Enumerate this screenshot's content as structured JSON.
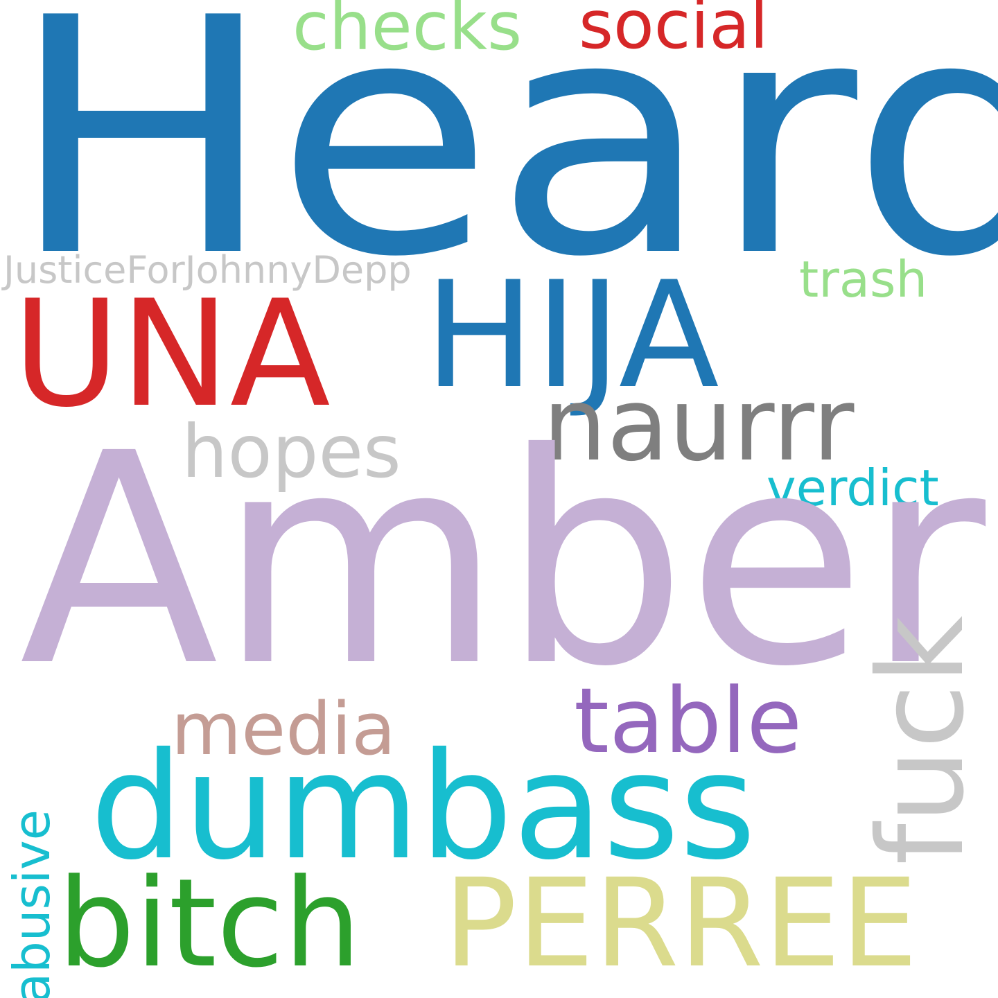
{
  "word_cloud": {
    "background": "#ffffff",
    "words": {
      "heard": {
        "text": "Heard",
        "color": "#1f77b4"
      },
      "checks": {
        "text": "checks",
        "color": "#98df8a"
      },
      "social": {
        "text": "social",
        "color": "#d62728"
      },
      "justice": {
        "text": "JusticeForJohnnyDepp",
        "color": "#c7c7c7"
      },
      "trash": {
        "text": "trash",
        "color": "#98df8a"
      },
      "hija": {
        "text": "HIJA",
        "color": "#1f77b4"
      },
      "una": {
        "text": "UNA",
        "color": "#d62728"
      },
      "naurrr": {
        "text": "naurrr",
        "color": "#7f7f7f"
      },
      "hopes": {
        "text": "hopes",
        "color": "#c7c7c7"
      },
      "verdict": {
        "text": "verdict",
        "color": "#17becf"
      },
      "amber": {
        "text": "Amber",
        "color": "#c5b0d5"
      },
      "fuck": {
        "text": "fuck",
        "color": "#c7c7c7"
      },
      "media": {
        "text": "media",
        "color": "#c49c94"
      },
      "table": {
        "text": "table",
        "color": "#9467bd"
      },
      "dumbass": {
        "text": "dumbass",
        "color": "#17becf"
      },
      "abusive": {
        "text": "abusive",
        "color": "#17becf"
      },
      "bitch": {
        "text": "bitch",
        "color": "#2ca02c"
      },
      "perree": {
        "text": "PERREE",
        "color": "#dbdb8d"
      }
    }
  }
}
